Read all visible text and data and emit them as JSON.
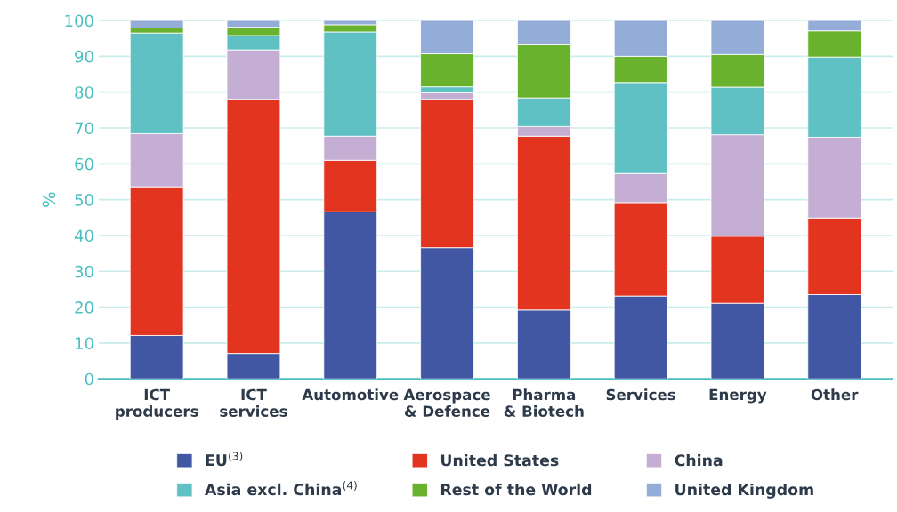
{
  "chart_data": {
    "type": "bar",
    "stacked": true,
    "ylabel": "%",
    "categories": [
      "ICT\nproducers",
      "ICT\nservices",
      "Automotive",
      "Aerospace\n& Defence",
      "Pharma\n& Biotech",
      "Services",
      "Energy",
      "Other"
    ],
    "series": [
      {
        "name": "EU$^{(3)}$",
        "color": "#4257a4",
        "values": [
          12.1,
          7.1,
          46.6,
          36.6,
          19.2,
          23.1,
          21.1,
          23.5
        ]
      },
      {
        "name": "United States",
        "color": "#e33420",
        "values": [
          41.5,
          70.9,
          14.4,
          41.4,
          48.5,
          26.1,
          18.7,
          21.4
        ]
      },
      {
        "name": "China",
        "color": "#c5aed4",
        "values": [
          14.8,
          13.8,
          6.7,
          1.8,
          2.7,
          8.1,
          28.3,
          22.5
        ]
      },
      {
        "name": "Asia excl. China$^{(4)}$",
        "color": "#5fc1c4",
        "values": [
          28.1,
          4.0,
          29.1,
          1.7,
          8.0,
          25.4,
          13.3,
          22.4
        ]
      },
      {
        "name": "Rest of the World",
        "color": "#68b22e",
        "values": [
          1.4,
          2.3,
          2.0,
          9.2,
          14.8,
          7.3,
          9.1,
          7.3
        ]
      },
      {
        "name": "United Kingdom",
        "color": "#94acd8",
        "values": [
          2.1,
          1.9,
          1.2,
          9.3,
          6.8,
          10.0,
          9.5,
          2.9
        ]
      }
    ],
    "ylim": [
      0,
      100
    ],
    "yticks": [
      0,
      10,
      20,
      30,
      40,
      50,
      60,
      70,
      80,
      90,
      100
    ],
    "grid": "y",
    "legend": "bottom"
  }
}
